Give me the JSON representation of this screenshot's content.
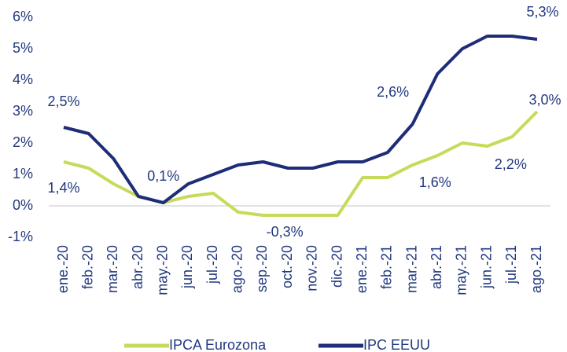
{
  "chart_data": {
    "type": "line",
    "categories": [
      "ene.-20",
      "feb.-20",
      "mar.-20",
      "abr.-20",
      "may.-20",
      "jun.-20",
      "jul.-20",
      "ago.-20",
      "sep.-20",
      "oct.-20",
      "nov.-20",
      "dic.-20",
      "ene.-21",
      "feb.-21",
      "mar.-21",
      "abr.-21",
      "may.-21",
      "jun.-21",
      "jul.-21",
      "ago.-21"
    ],
    "series": [
      {
        "name": "IPCA Eurozona",
        "color": "#c8da5a",
        "values": [
          1.4,
          1.2,
          0.7,
          0.3,
          0.1,
          0.3,
          0.4,
          -0.2,
          -0.3,
          -0.3,
          -0.3,
          -0.3,
          0.9,
          0.9,
          1.3,
          1.6,
          2.0,
          1.9,
          2.2,
          3.0
        ],
        "value_labels": [
          "1,4%",
          null,
          null,
          null,
          null,
          null,
          null,
          null,
          null,
          "-0,3%",
          null,
          null,
          null,
          null,
          null,
          "1,6%",
          null,
          null,
          "2,2%",
          "3,0%"
        ]
      },
      {
        "name": "IPC EEUU",
        "color": "#1d2d78",
        "values": [
          2.5,
          2.3,
          1.5,
          0.3,
          0.1,
          0.7,
          1.0,
          1.3,
          1.4,
          1.2,
          1.2,
          1.4,
          1.4,
          1.7,
          2.6,
          4.2,
          5.0,
          5.4,
          5.4,
          5.3
        ],
        "value_labels": [
          "2,5%",
          null,
          null,
          null,
          "0,1%",
          null,
          null,
          null,
          null,
          null,
          null,
          null,
          null,
          null,
          "2,6%",
          null,
          null,
          null,
          null,
          "5,3%"
        ]
      }
    ],
    "ylim": [
      -1,
      6
    ],
    "yticks": [
      {
        "value": -1,
        "label": "-1%"
      },
      {
        "value": 0,
        "label": "0%"
      },
      {
        "value": 1,
        "label": "1%"
      },
      {
        "value": 2,
        "label": "2%"
      },
      {
        "value": 3,
        "label": "3%"
      },
      {
        "value": 4,
        "label": "4%"
      },
      {
        "value": 5,
        "label": "5%"
      },
      {
        "value": 6,
        "label": "6%"
      }
    ]
  }
}
